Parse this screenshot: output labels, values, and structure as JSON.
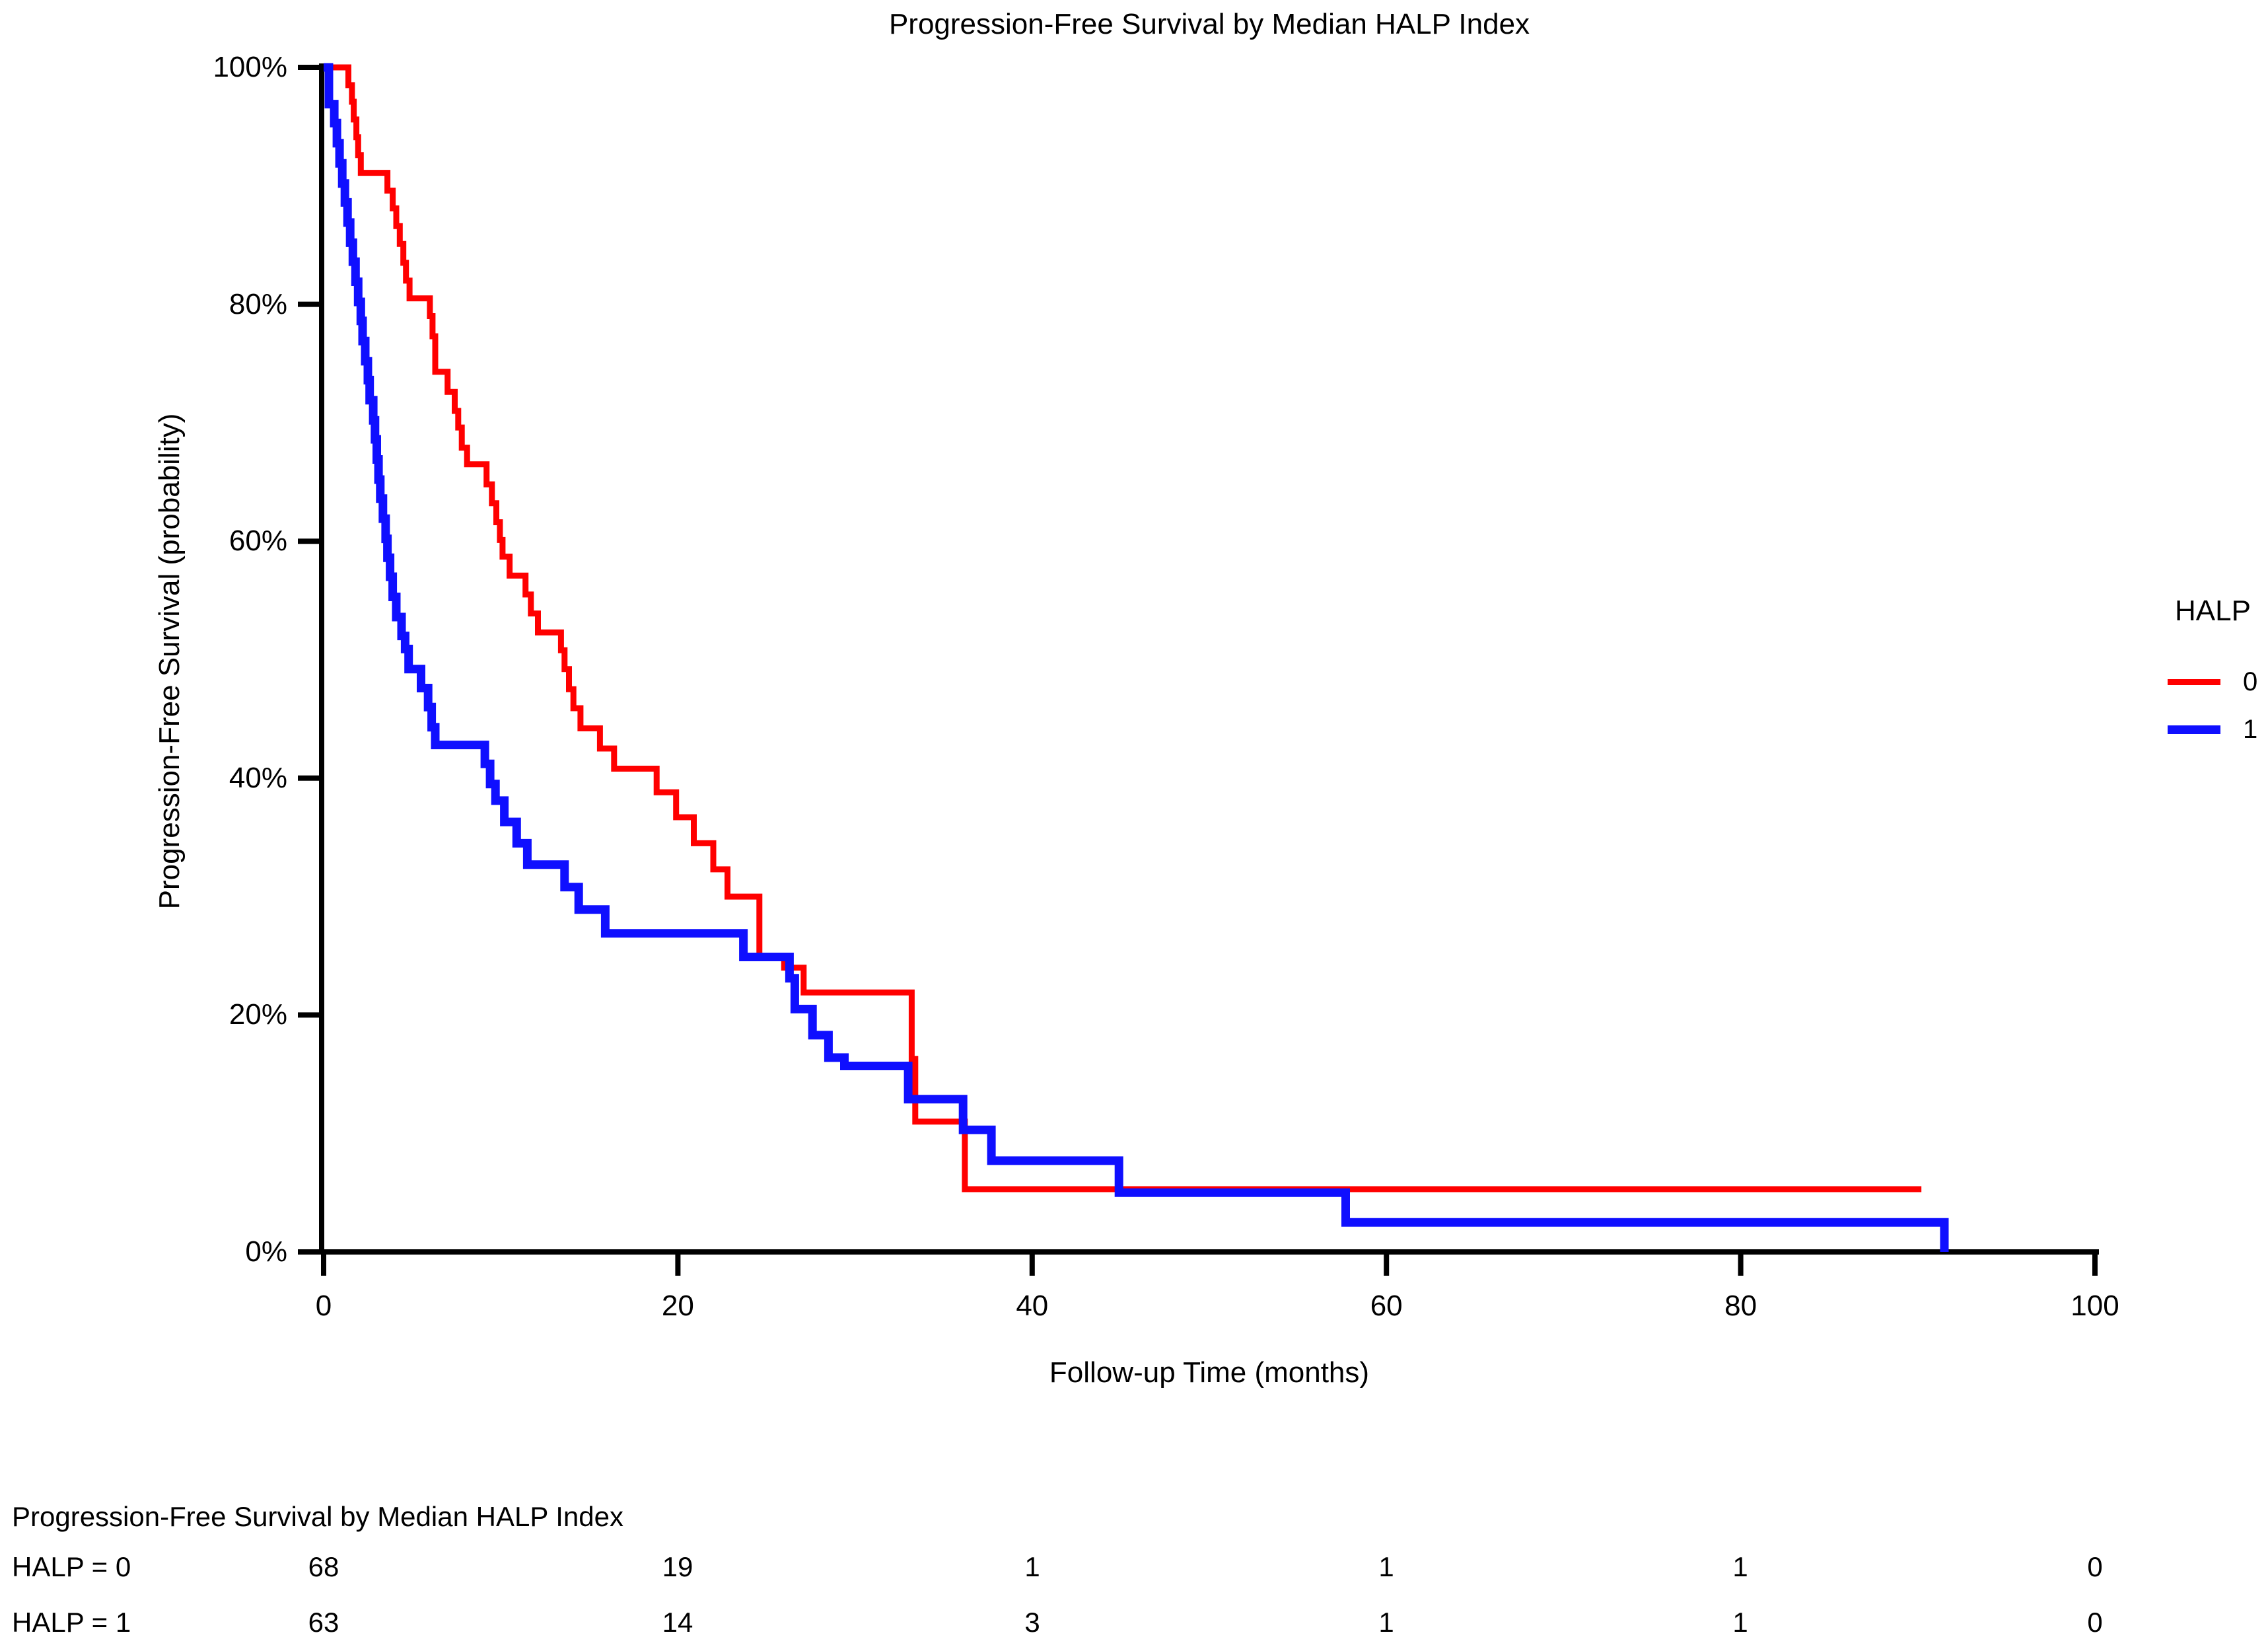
{
  "chart_data": {
    "type": "line",
    "subtype": "kaplan-meier-step",
    "title": "Progression-Free Survival by Median HALP Index",
    "xlabel": "Follow-up Time (months)",
    "ylabel": "Progression-Free Survival (probability)",
    "xlim": [
      0,
      100
    ],
    "ylim": [
      0,
      100
    ],
    "x_ticks": [
      0,
      20,
      40,
      60,
      80,
      100
    ],
    "y_ticks": [
      0,
      20,
      40,
      60,
      80,
      100
    ],
    "y_tick_suffix": "%",
    "grid": false,
    "background": "#ffffff",
    "axis_color": "#000000",
    "legend": {
      "title": "HALP",
      "position": "right",
      "entries": [
        {
          "label": "0",
          "color": "#ff0000"
        },
        {
          "label": "1",
          "color": "#0f0fff"
        }
      ]
    },
    "series": [
      {
        "name": "HALP = 0",
        "color": "#ff0000",
        "line_width": 9,
        "end_style": "flat",
        "points": [
          [
            0,
            100
          ],
          [
            1.4,
            98.5
          ],
          [
            1.6,
            97.1
          ],
          [
            1.7,
            95.6
          ],
          [
            1.85,
            94.1
          ],
          [
            1.95,
            92.6
          ],
          [
            2.1,
            91.1
          ],
          [
            3.6,
            89.6
          ],
          [
            3.9,
            88.1
          ],
          [
            4.1,
            86.6
          ],
          [
            4.3,
            85.1
          ],
          [
            4.5,
            83.5
          ],
          [
            4.65,
            82.0
          ],
          [
            4.85,
            80.5
          ],
          [
            6.0,
            79.0
          ],
          [
            6.15,
            77.3
          ],
          [
            6.3,
            74.3
          ],
          [
            7.0,
            72.6
          ],
          [
            7.4,
            71.0
          ],
          [
            7.6,
            69.6
          ],
          [
            7.8,
            67.9
          ],
          [
            8.1,
            66.5
          ],
          [
            9.2,
            64.8
          ],
          [
            9.5,
            63.2
          ],
          [
            9.75,
            61.6
          ],
          [
            9.95,
            60.1
          ],
          [
            10.1,
            58.7
          ],
          [
            10.5,
            57.1
          ],
          [
            11.4,
            55.5
          ],
          [
            11.7,
            53.9
          ],
          [
            12.1,
            52.3
          ],
          [
            13.4,
            50.8
          ],
          [
            13.6,
            49.2
          ],
          [
            13.85,
            47.5
          ],
          [
            14.1,
            45.9
          ],
          [
            14.5,
            44.2
          ],
          [
            15.6,
            42.5
          ],
          [
            16.4,
            40.8
          ],
          [
            18.8,
            38.8
          ],
          [
            19.9,
            36.7
          ],
          [
            20.9,
            34.5
          ],
          [
            22.0,
            32.3
          ],
          [
            22.8,
            30.0
          ],
          [
            24.6,
            25.0
          ],
          [
            26.0,
            24.0
          ],
          [
            27.1,
            21.9
          ],
          [
            33.2,
            16.3
          ],
          [
            33.4,
            11.0
          ],
          [
            36.2,
            5.3
          ],
          [
            90.2,
            5.3
          ]
        ]
      },
      {
        "name": "HALP = 1",
        "color": "#0f0fff",
        "line_width": 13,
        "end_style": "drop-to-zero",
        "points": [
          [
            0,
            100
          ],
          [
            0.3,
            96.9
          ],
          [
            0.6,
            95.3
          ],
          [
            0.75,
            93.6
          ],
          [
            0.9,
            91.9
          ],
          [
            1.05,
            90.2
          ],
          [
            1.2,
            88.6
          ],
          [
            1.35,
            86.9
          ],
          [
            1.5,
            85.2
          ],
          [
            1.65,
            83.6
          ],
          [
            1.8,
            81.9
          ],
          [
            1.95,
            80.2
          ],
          [
            2.1,
            78.6
          ],
          [
            2.2,
            76.9
          ],
          [
            2.35,
            75.2
          ],
          [
            2.5,
            73.6
          ],
          [
            2.6,
            71.9
          ],
          [
            2.8,
            70.2
          ],
          [
            2.9,
            68.6
          ],
          [
            3.0,
            66.9
          ],
          [
            3.1,
            65.2
          ],
          [
            3.2,
            63.6
          ],
          [
            3.35,
            61.9
          ],
          [
            3.5,
            60.2
          ],
          [
            3.6,
            58.6
          ],
          [
            3.75,
            57.0
          ],
          [
            3.9,
            55.3
          ],
          [
            4.1,
            53.6
          ],
          [
            4.4,
            52.0
          ],
          [
            4.6,
            50.9
          ],
          [
            4.8,
            49.2
          ],
          [
            5.5,
            47.6
          ],
          [
            5.9,
            46.0
          ],
          [
            6.1,
            44.3
          ],
          [
            6.3,
            42.8
          ],
          [
            9.1,
            41.2
          ],
          [
            9.4,
            39.5
          ],
          [
            9.7,
            38.1
          ],
          [
            10.2,
            36.3
          ],
          [
            10.9,
            34.5
          ],
          [
            11.5,
            32.7
          ],
          [
            13.6,
            30.8
          ],
          [
            14.4,
            28.9
          ],
          [
            15.9,
            26.9
          ],
          [
            23.7,
            24.9
          ],
          [
            26.3,
            23.1
          ],
          [
            26.6,
            20.5
          ],
          [
            27.6,
            18.3
          ],
          [
            28.5,
            16.4
          ],
          [
            29.4,
            15.7
          ],
          [
            33.0,
            12.9
          ],
          [
            36.1,
            10.3
          ],
          [
            37.7,
            7.7
          ],
          [
            44.9,
            5.0
          ],
          [
            57.7,
            2.5
          ],
          [
            91.5,
            2.5
          ],
          [
            91.5,
            0
          ]
        ]
      }
    ]
  },
  "risk_table": {
    "title": "Progression-Free Survival by Median HALP Index",
    "time_points": [
      0,
      20,
      40,
      60,
      80,
      100
    ],
    "rows": [
      {
        "label": "HALP = 0",
        "counts": [
          "68",
          "19",
          "1",
          "1",
          "1",
          "0"
        ]
      },
      {
        "label": "HALP = 1",
        "counts": [
          "63",
          "14",
          "3",
          "1",
          "1",
          "0"
        ]
      }
    ]
  }
}
